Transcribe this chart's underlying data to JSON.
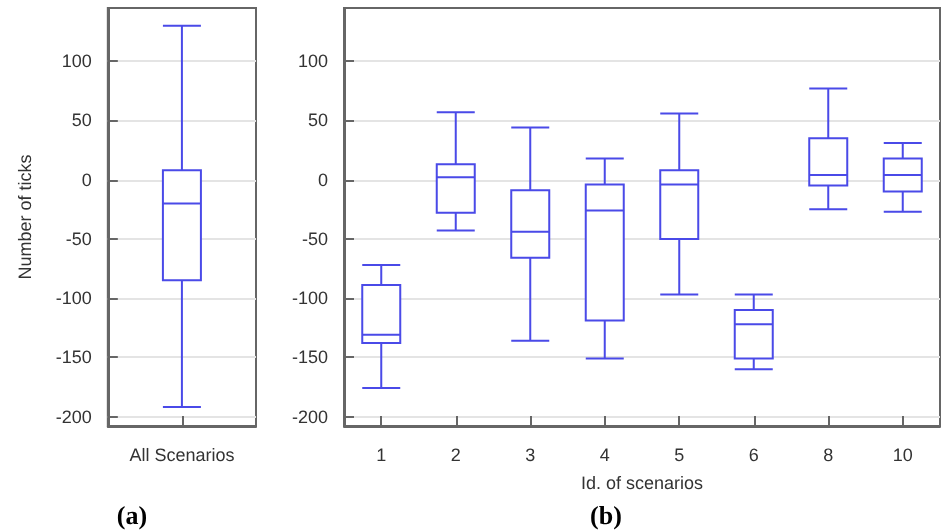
{
  "chart_data": [
    {
      "type": "box",
      "ylabel": "Number of ticks",
      "categories": [
        "All Scenarios"
      ],
      "ylim": [
        -208,
        145
      ],
      "yticks": [
        -200,
        -150,
        -100,
        -50,
        0,
        50,
        100
      ],
      "grid": "y",
      "annotations": [
        "(a)"
      ],
      "series": [
        {
          "color": "#4a4ae8",
          "boxes": [
            {
              "low": -192,
              "q1": -85,
              "median": -20,
              "q3": 8,
              "high": 130
            }
          ]
        }
      ]
    },
    {
      "type": "box",
      "xlabel": "Id. of scenarios",
      "categories": [
        "1",
        "2",
        "3",
        "4",
        "5",
        "6",
        "8",
        "10"
      ],
      "ylim": [
        -208,
        145
      ],
      "yticks": [
        -200,
        -150,
        -100,
        -50,
        0,
        50,
        100
      ],
      "grid": "y",
      "annotations": [
        "(b)"
      ],
      "series": [
        {
          "color": "#4a4ae8",
          "boxes": [
            {
              "low": -176,
              "q1": -138,
              "median": -131,
              "q3": -89,
              "high": -72
            },
            {
              "low": -43,
              "q1": -28,
              "median": 2,
              "q3": 13,
              "high": 57
            },
            {
              "low": -136,
              "q1": -66,
              "median": -44,
              "q3": -9,
              "high": 44
            },
            {
              "low": -151,
              "q1": -119,
              "median": -26,
              "q3": -4,
              "high": 18
            },
            {
              "low": -97,
              "q1": -50,
              "median": -4,
              "q3": 8,
              "high": 56
            },
            {
              "low": -160,
              "q1": -151,
              "median": -122,
              "q3": -110,
              "high": -97
            },
            {
              "low": -25,
              "q1": -5,
              "median": 4,
              "q3": 35,
              "high": 77
            },
            {
              "low": -27,
              "q1": -10,
              "median": 4,
              "q3": 18,
              "high": 31
            }
          ]
        }
      ]
    }
  ]
}
